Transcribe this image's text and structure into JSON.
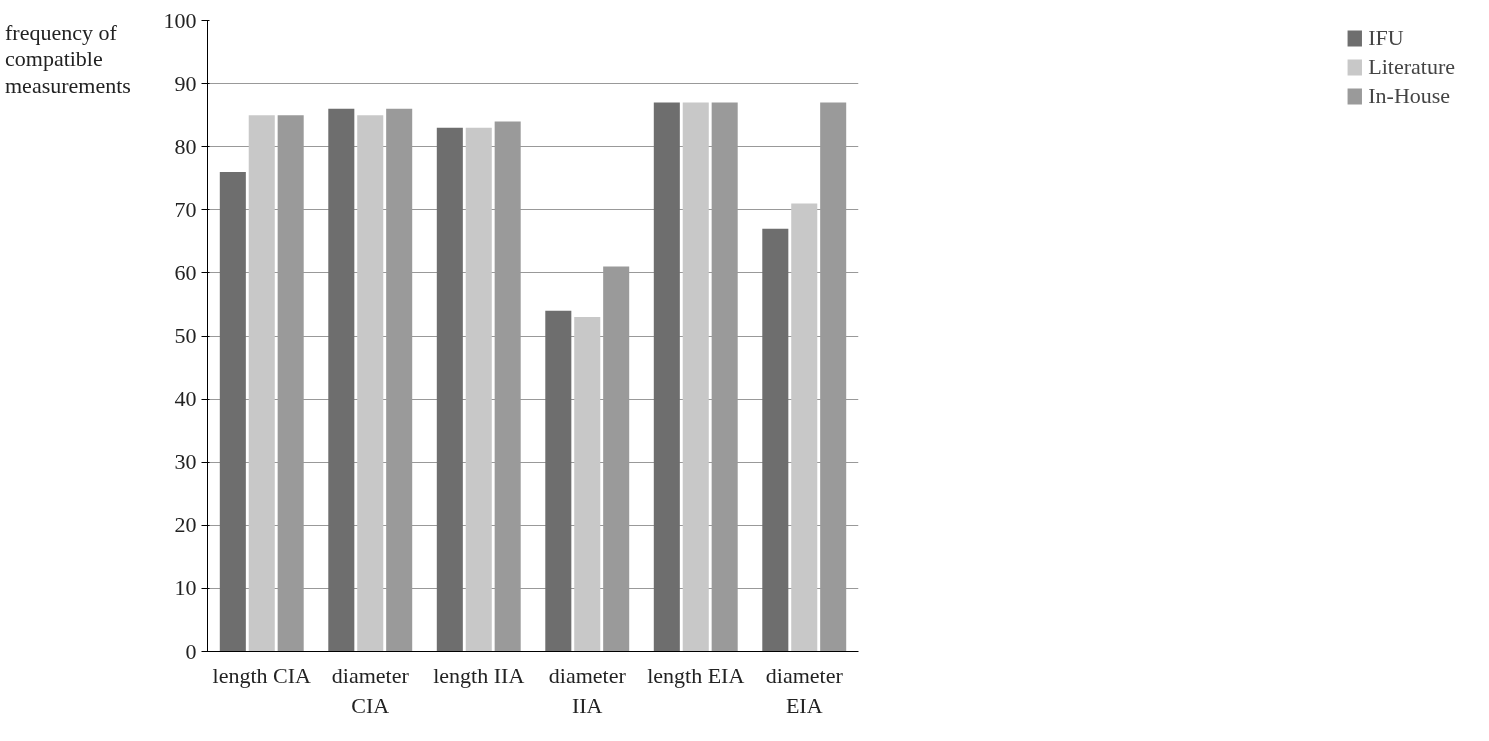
{
  "chart_data": {
    "type": "bar",
    "ylabel": "frequency of\ncompatible\nmeasurements",
    "categories": [
      "length CIA",
      "diameter\nCIA",
      "length IIA",
      "diameter\nIIA",
      "length EIA",
      "diameter\nEIA"
    ],
    "series": [
      {
        "name": "IFU",
        "color": "#6e6e6e",
        "values": [
          76,
          86,
          83,
          54,
          87,
          67
        ]
      },
      {
        "name": "Literature",
        "color": "#c8c8c8",
        "values": [
          85,
          85,
          83,
          53,
          87,
          71
        ]
      },
      {
        "name": "In-House",
        "color": "#9a9a9a",
        "values": [
          85,
          86,
          84,
          61,
          87,
          87
        ]
      }
    ],
    "ylim": [
      0,
      100
    ],
    "yticks": [
      0,
      10,
      20,
      30,
      40,
      50,
      60,
      70,
      80,
      90,
      100
    ],
    "grid": "y",
    "legend": "right"
  }
}
